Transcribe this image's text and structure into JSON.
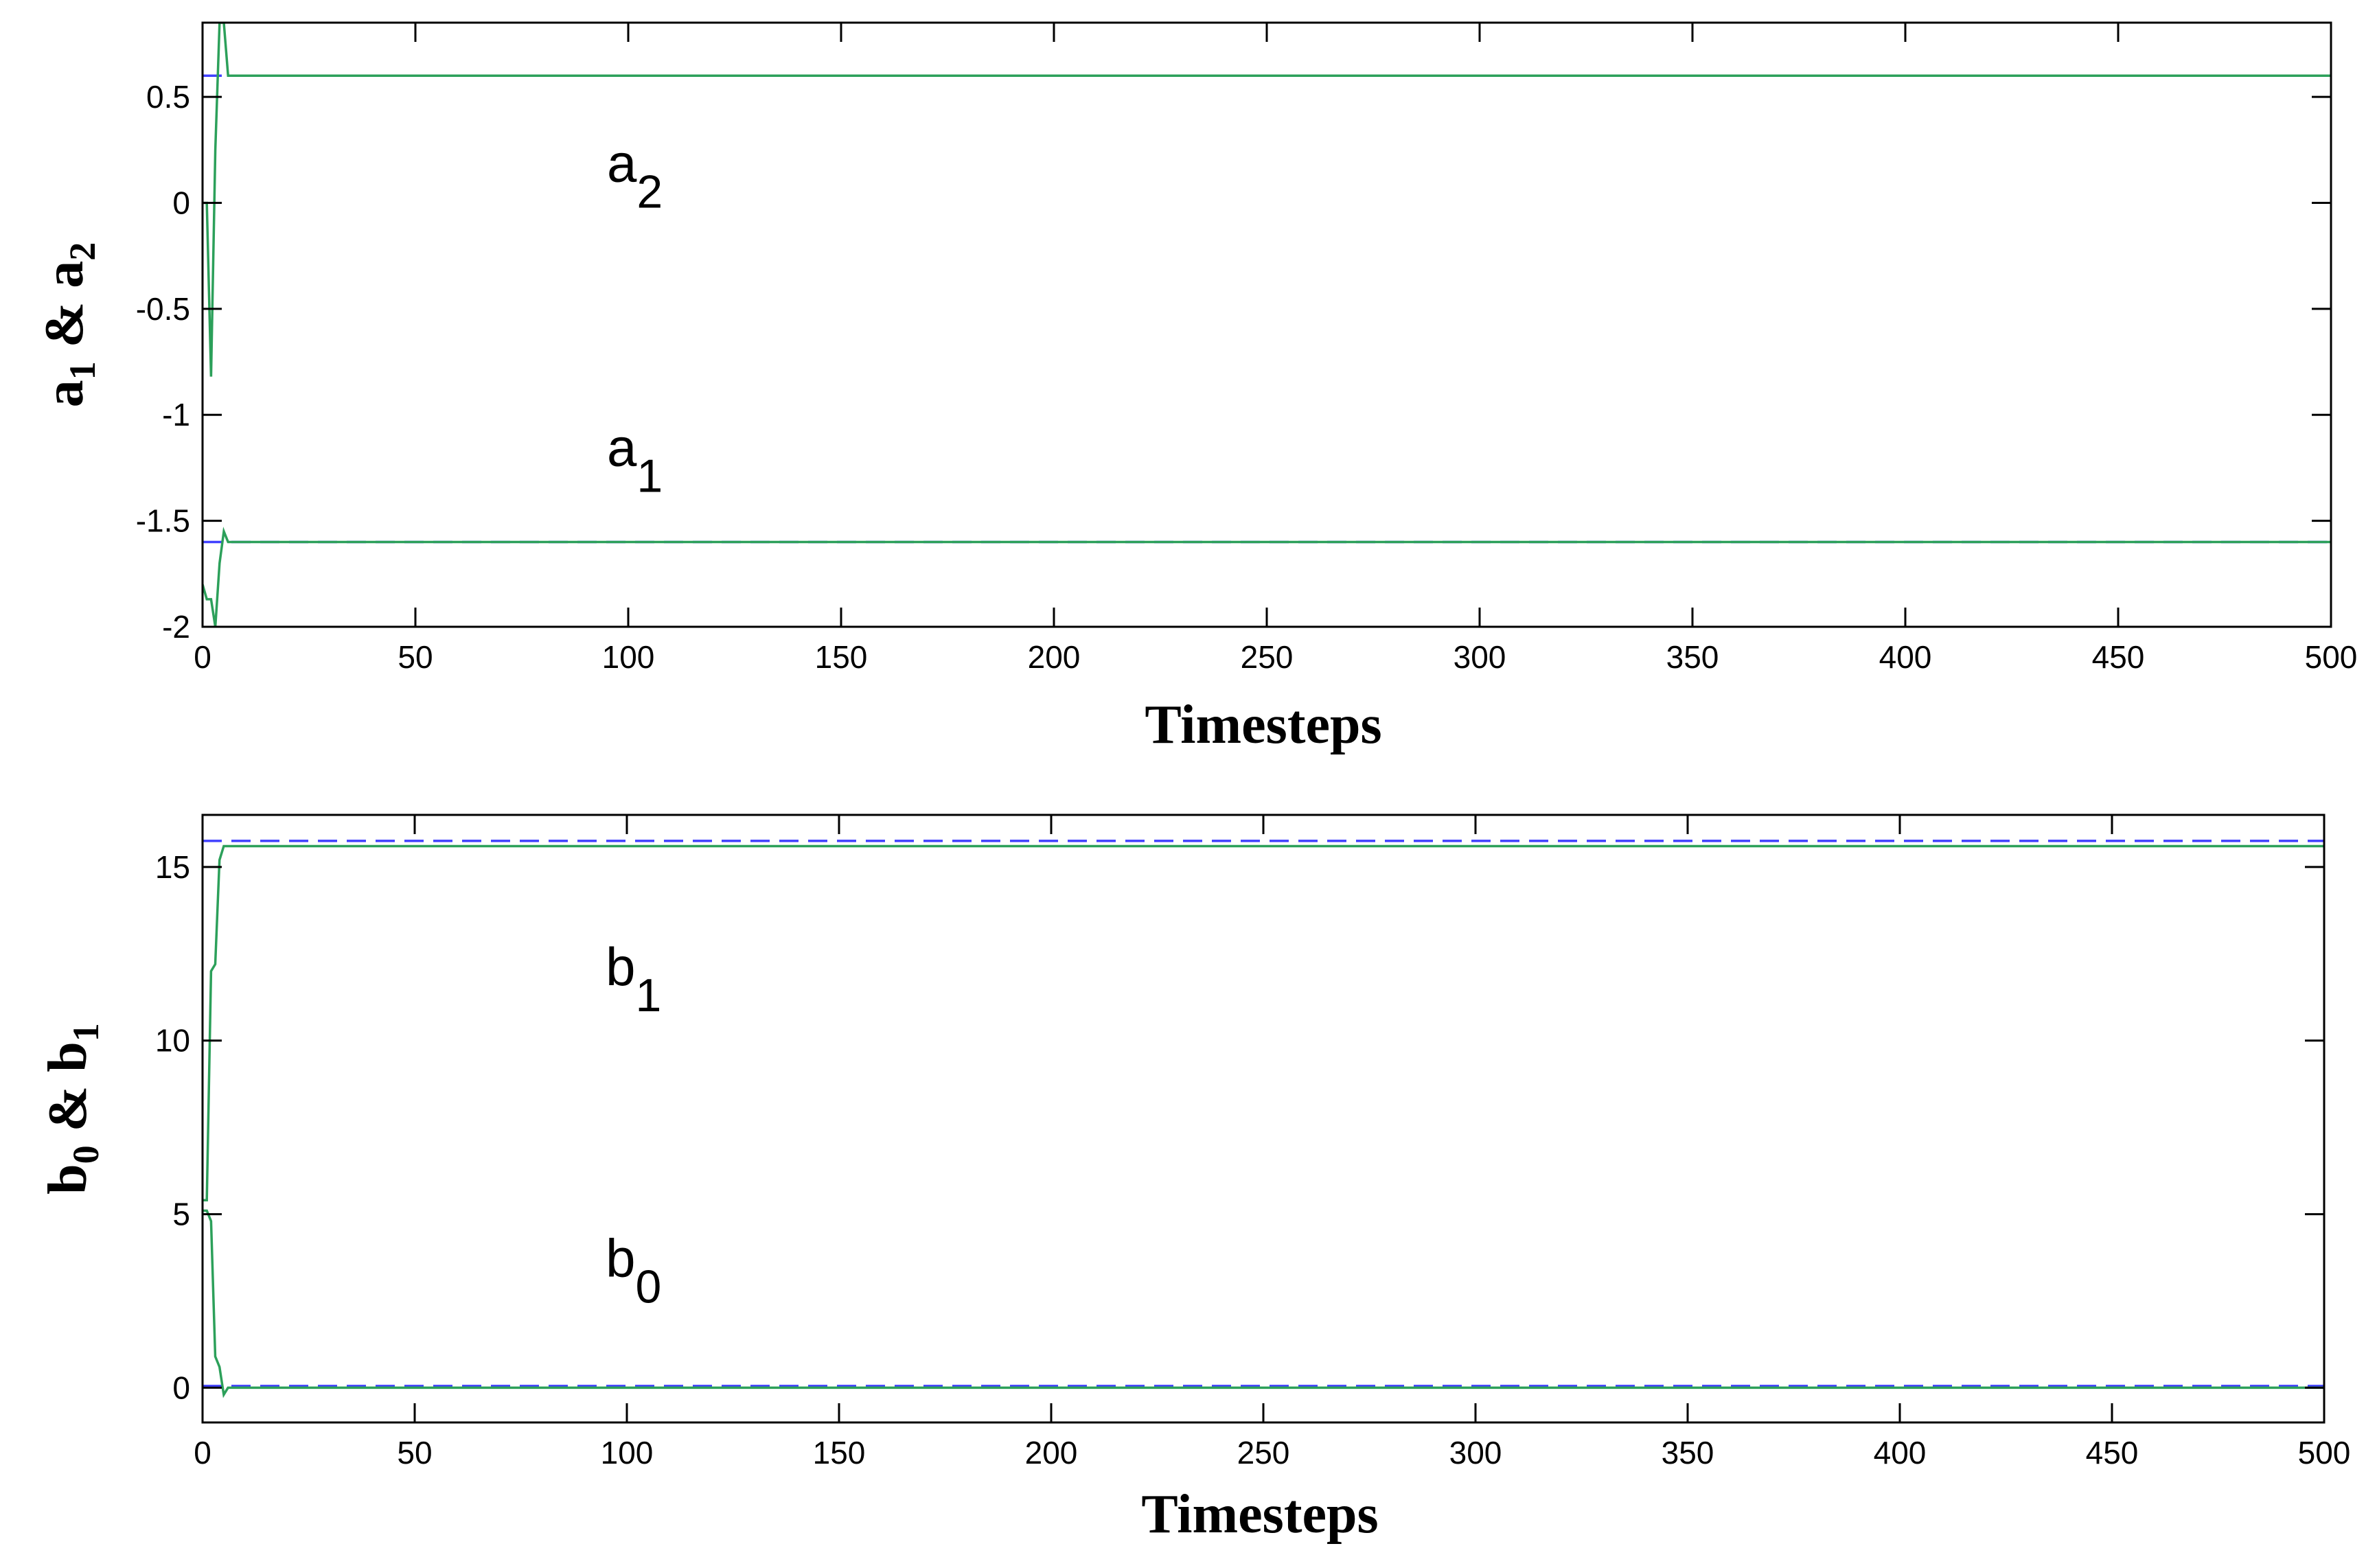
{
  "chart_data": [
    {
      "type": "line",
      "title": "",
      "xlabel": "Timesteps",
      "ylabel": {
        "base1": "a",
        "sub1": "1",
        "amp": "&",
        "base2": "a",
        "sub2": "2"
      },
      "xlim": [
        0,
        500
      ],
      "ylim": [
        -2,
        0.85
      ],
      "xticks": [
        0,
        50,
        100,
        150,
        200,
        250,
        300,
        350,
        400,
        450,
        500
      ],
      "yticks": [
        0.5,
        0,
        -0.5,
        -1,
        -1.5,
        -2
      ],
      "ytick_labels": [
        "0.5",
        "0",
        "-0.5",
        "-1",
        "-1.5",
        "-2"
      ],
      "grid": false,
      "colors": {
        "estimate": "#2ca05a",
        "true": "#4040ff"
      },
      "annotations": [
        {
          "base": "a",
          "sub": "2",
          "x": 95,
          "y": 0.1
        },
        {
          "base": "a",
          "sub": "1",
          "x": 95,
          "y": -1.24
        }
      ],
      "series": [
        {
          "style": "dashed",
          "color": "#4040ff",
          "x": [
            0,
            500
          ],
          "y": [
            0.6,
            0.6
          ]
        },
        {
          "style": "dashed",
          "color": "#4040ff",
          "x": [
            0,
            500
          ],
          "y": [
            -1.6,
            -1.6
          ]
        },
        {
          "style": "solid",
          "color": "#2ca05a",
          "x": [
            0,
            1,
            2,
            3,
            4,
            5,
            6,
            500
          ],
          "y": [
            0,
            0,
            -0.82,
            0.25,
            0.85,
            0.85,
            0.6,
            0.6
          ]
        },
        {
          "style": "solid",
          "color": "#2ca05a",
          "x": [
            0,
            1,
            2,
            3,
            4,
            5,
            6,
            500
          ],
          "y": [
            -1.8,
            -1.87,
            -1.87,
            -2.0,
            -1.7,
            -1.55,
            -1.6,
            -1.6
          ]
        }
      ]
    },
    {
      "type": "line",
      "title": "",
      "xlabel": "Timesteps",
      "ylabel": {
        "base1": "b",
        "sub1": "0",
        "amp": "&",
        "base2": "b",
        "sub2": "1"
      },
      "xlim": [
        0,
        500
      ],
      "ylim": [
        -1,
        16.5
      ],
      "xticks": [
        0,
        50,
        100,
        150,
        200,
        250,
        300,
        350,
        400,
        450,
        500
      ],
      "yticks": [
        0,
        5,
        10,
        15
      ],
      "ytick_labels": [
        "0",
        "5",
        "10",
        "15"
      ],
      "grid": false,
      "colors": {
        "estimate": "#2ca05a",
        "true": "#4040ff"
      },
      "annotations": [
        {
          "base": "b",
          "sub": "1",
          "x": 95,
          "y": 11.6
        },
        {
          "base": "b",
          "sub": "0",
          "x": 95,
          "y": 3.2
        }
      ],
      "series": [
        {
          "style": "dashed",
          "color": "#4040ff",
          "x": [
            0,
            500
          ],
          "y": [
            15.75,
            15.75
          ]
        },
        {
          "style": "dashed",
          "color": "#4040ff",
          "x": [
            0,
            500
          ],
          "y": [
            0.05,
            0.05
          ]
        },
        {
          "style": "solid",
          "color": "#2ca05a",
          "x": [
            0,
            1,
            2,
            3,
            4,
            5,
            6,
            500
          ],
          "y": [
            5.4,
            5.4,
            12.0,
            12.2,
            15.2,
            15.6,
            15.6,
            15.6
          ]
        },
        {
          "style": "solid",
          "color": "#2ca05a",
          "x": [
            0,
            1,
            2,
            3,
            4,
            5,
            6,
            500
          ],
          "y": [
            5.1,
            5.1,
            4.8,
            0.9,
            0.6,
            -0.2,
            0,
            0
          ]
        }
      ]
    }
  ]
}
